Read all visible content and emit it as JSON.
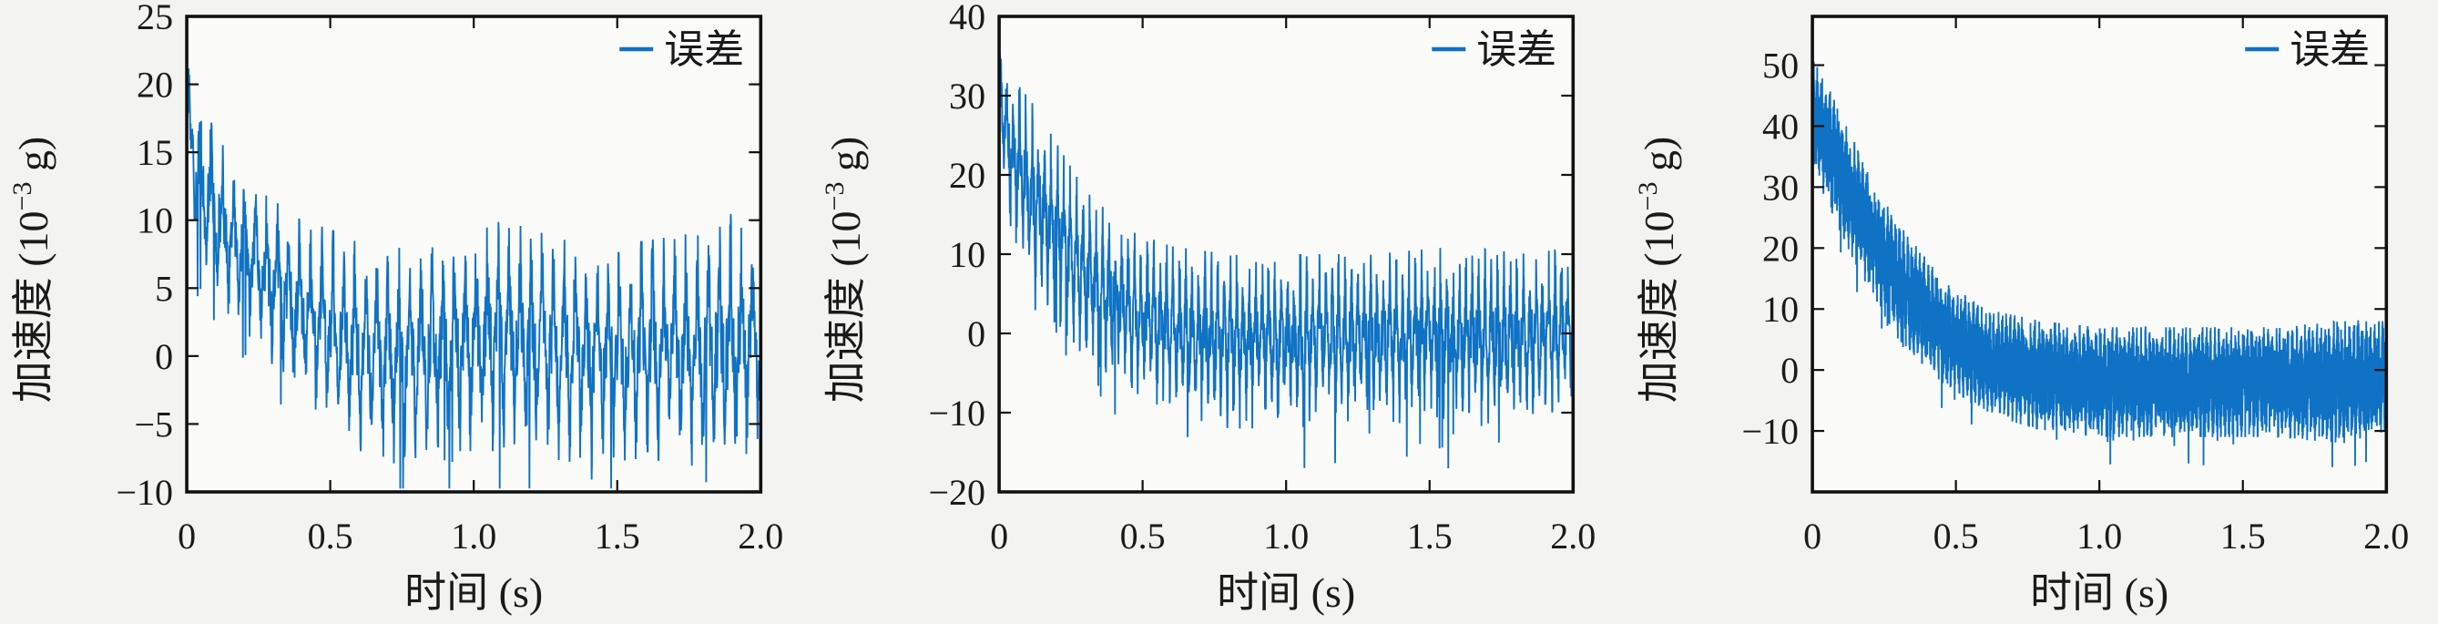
{
  "figure": {
    "background": "#f3f3f1",
    "axes_face": "#fbfbfa",
    "frame_color": "#111111",
    "text_color": "#1a1a1a",
    "tick_length": 12,
    "tick_label_size": 40,
    "axis_label_size": 46,
    "legend_size": 44,
    "line_width": 1.9
  },
  "chart_data": [
    {
      "type": "line",
      "title": "",
      "xlabel": "时间 (s)",
      "ylabel": "加速度 (10⁻³ g)",
      "ylabel_rich": {
        "pre": "加速度 (10",
        "sup": "−3",
        "post": " g)"
      },
      "legend": [
        {
          "label": "误差",
          "color": "#0f72c4"
        }
      ],
      "legend_location": "upper right",
      "grid": false,
      "xlim": [
        0,
        2
      ],
      "ylim": [
        -10,
        25
      ],
      "xticks": [
        0,
        0.5,
        1.0,
        1.5,
        2.0
      ],
      "xtick_labels": [
        "0",
        "0.5",
        "1.0",
        "1.5",
        "2.0"
      ],
      "yticks": [
        -10,
        -5,
        0,
        5,
        10,
        15,
        20,
        25
      ],
      "ytick_labels": [
        "−10",
        "−5",
        "0",
        "5",
        "10",
        "15",
        "20",
        "25"
      ],
      "series": [
        {
          "name": "误差",
          "color": "#0f72c4",
          "n_points": 1800,
          "seed": 11,
          "freq_hz": 26,
          "core_noise": 0.34,
          "spike_weight": 0.74,
          "spike_sharpness": 3,
          "spike_prob": 0.009,
          "envelope": {
            "t": [
              0,
              0.04,
              0.1,
              0.2,
              0.3,
              0.4,
              0.55,
              0.7,
              0.9,
              1.1,
              1.4,
              1.6,
              1.75,
              1.9,
              2.0
            ],
            "upper": [
              21.5,
              20,
              17,
              13.5,
              11.5,
              10,
              9,
              8,
              8,
              10,
              8,
              8.5,
              9,
              10.5,
              8
            ],
            "lower": [
              14,
              6,
              4,
              2,
              -1,
              -3.5,
              -6.5,
              -8,
              -7,
              -7,
              -8,
              -7.5,
              -8,
              -9,
              -6
            ]
          },
          "summary": "误差 starts at ≈21×10⁻³ g at t=0 and decays to an oscillation about 0 within roughly ±7×10⁻³ g after ≈0.6 s"
        }
      ]
    },
    {
      "type": "line",
      "title": "",
      "xlabel": "时间 (s)",
      "ylabel": "加速度 (10⁻³ g)",
      "ylabel_rich": {
        "pre": "加速度 (10",
        "sup": "−3",
        "post": " g)"
      },
      "legend": [
        {
          "label": "误差",
          "color": "#0f72c4"
        }
      ],
      "legend_location": "upper right",
      "grid": false,
      "xlim": [
        0,
        2
      ],
      "ylim": [
        -20,
        40
      ],
      "xticks": [
        0,
        0.5,
        1.0,
        1.5,
        2.0
      ],
      "xtick_labels": [
        "0",
        "0.5",
        "1.0",
        "1.5",
        "2.0"
      ],
      "yticks": [
        -20,
        -10,
        0,
        10,
        20,
        30,
        40
      ],
      "ytick_labels": [
        "−20",
        "−10",
        "0",
        "10",
        "20",
        "30",
        "40"
      ],
      "series": [
        {
          "name": "误差",
          "color": "#0f72c4",
          "n_points": 2300,
          "seed": 23,
          "freq_hz": 45,
          "core_noise": 0.36,
          "spike_weight": 0.72,
          "spike_sharpness": 3,
          "spike_prob": 0.007,
          "envelope": {
            "t": [
              0,
              0.04,
              0.1,
              0.2,
              0.3,
              0.45,
              0.6,
              0.8,
              1.0,
              1.3,
              1.6,
              1.85,
              2.0
            ],
            "upper": [
              37,
              34,
              30,
              24,
              18,
              13,
              11,
              10,
              10,
              10,
              11,
              10,
              11
            ],
            "lower": [
              24,
              12,
              7,
              1,
              -3,
              -7,
              -10,
              -12,
              -12,
              -11,
              -12,
              -11,
              -9
            ]
          },
          "summary": "误差 starts at ≈37×10⁻³ g at t=0 and decays to an oscillation about 0 within roughly +10/−12×10⁻³ g after ≈0.5 s"
        }
      ]
    },
    {
      "type": "line",
      "title": "",
      "xlabel": "时间 (s)",
      "ylabel": "加速度 (10⁻³ g)",
      "ylabel_rich": {
        "pre": "加速度 (10",
        "sup": "−3",
        "post": " g)"
      },
      "legend": [
        {
          "label": "误差",
          "color": "#0f72c4"
        }
      ],
      "legend_location": "upper right",
      "grid": false,
      "xlim": [
        0,
        2
      ],
      "ylim": [
        -20,
        58
      ],
      "xticks": [
        0,
        0.5,
        1.0,
        1.5,
        2.0
      ],
      "xtick_labels": [
        "0",
        "0.5",
        "1.0",
        "1.5",
        "2.0"
      ],
      "yticks": [
        -10,
        0,
        10,
        20,
        30,
        40,
        50
      ],
      "ytick_labels": [
        "−10",
        "0",
        "10",
        "20",
        "30",
        "40",
        "50"
      ],
      "series": [
        {
          "name": "误差",
          "color": "#0f72c4",
          "n_points": 6000,
          "seed": 37,
          "freq_hz": 70,
          "core_noise": 0.8,
          "spike_weight": 0.3,
          "spike_sharpness": 1,
          "spike_prob": 0.004,
          "envelope": {
            "t": [
              0,
              0.05,
              0.1,
              0.2,
              0.3,
              0.45,
              0.6,
              0.8,
              1.0,
              1.3,
              1.6,
              1.85,
              2.0
            ],
            "upper": [
              51,
              47,
              42,
              32,
              24,
              15,
              10,
              8,
              7,
              7,
              7,
              8,
              8
            ],
            "lower": [
              32,
              28,
              22,
              13,
              5,
              -2,
              -7,
              -10,
              -11,
              -11,
              -11,
              -12,
              -10
            ]
          },
          "summary": "误差 is a dense noise band starting near 50×10⁻³ g at t=0, decaying to a band of roughly +7/−11×10⁻³ g about 0 after ≈0.6 s"
        }
      ]
    }
  ]
}
